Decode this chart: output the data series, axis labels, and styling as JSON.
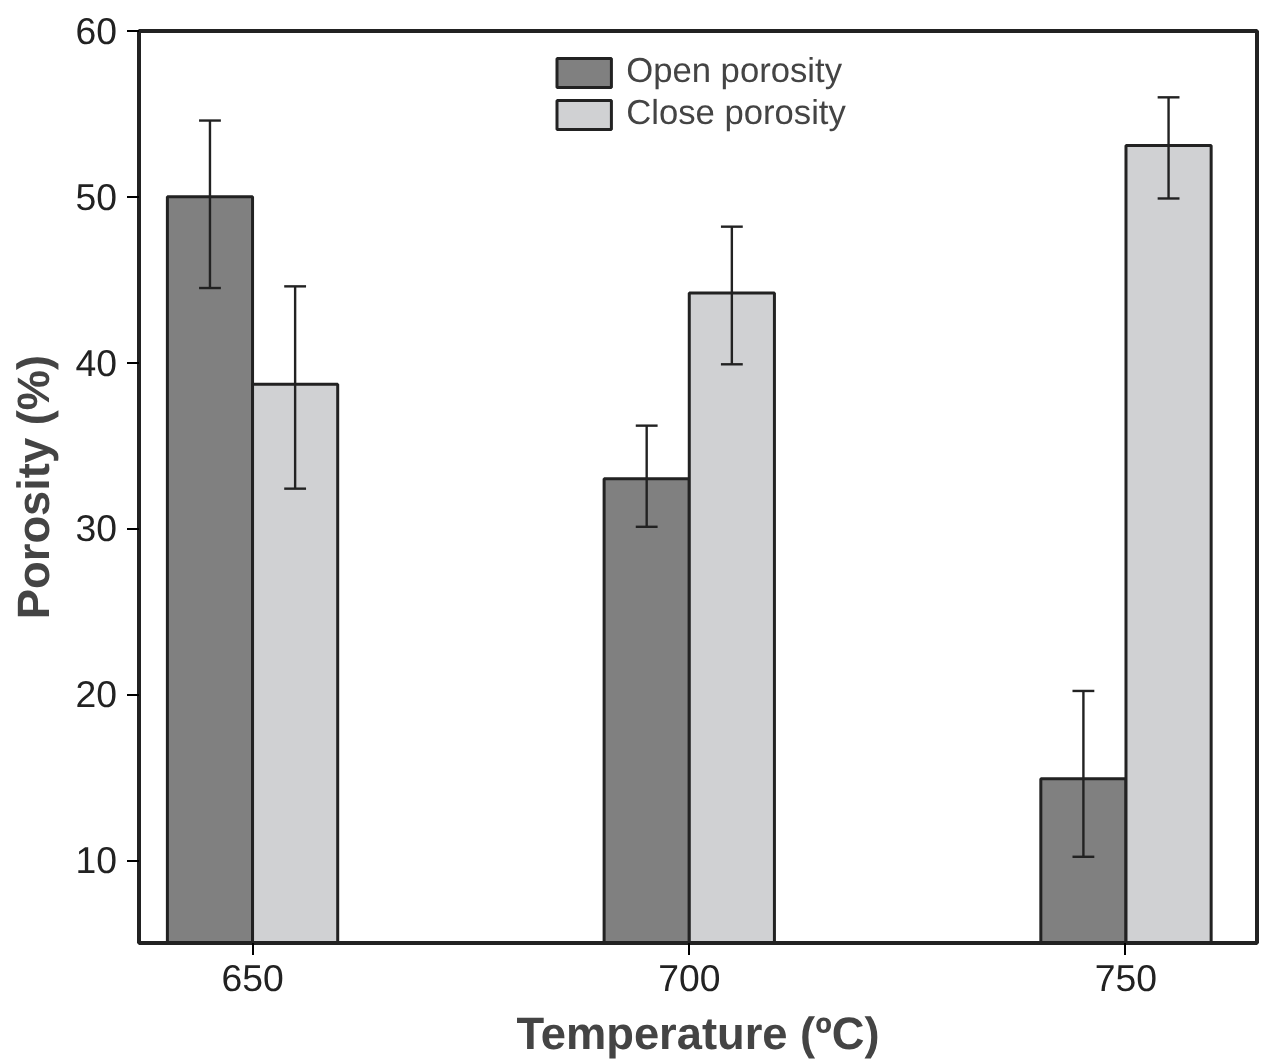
{
  "chart_data": {
    "type": "bar",
    "xlabel": "Temperature (ºC)",
    "ylabel": "Porosity (%)",
    "categories": [
      "650",
      "700",
      "750"
    ],
    "series": [
      {
        "name": "Open porosity",
        "color": "#808080",
        "values": [
          50,
          33,
          14.9
        ],
        "errors": [
          [
            44.5,
            54.6
          ],
          [
            30.1,
            36.2
          ],
          [
            10.2,
            20.2
          ]
        ]
      },
      {
        "name": "Close porosity",
        "color": "#d0d1d3",
        "values": [
          38.7,
          44.2,
          53.1
        ],
        "errors": [
          [
            32.4,
            44.6
          ],
          [
            39.9,
            48.2
          ],
          [
            49.9,
            56.0
          ]
        ]
      }
    ],
    "ylim": [
      5,
      60
    ],
    "yticks": [
      10,
      20,
      30,
      40,
      50,
      60
    ],
    "grid": false,
    "legend": "top"
  }
}
